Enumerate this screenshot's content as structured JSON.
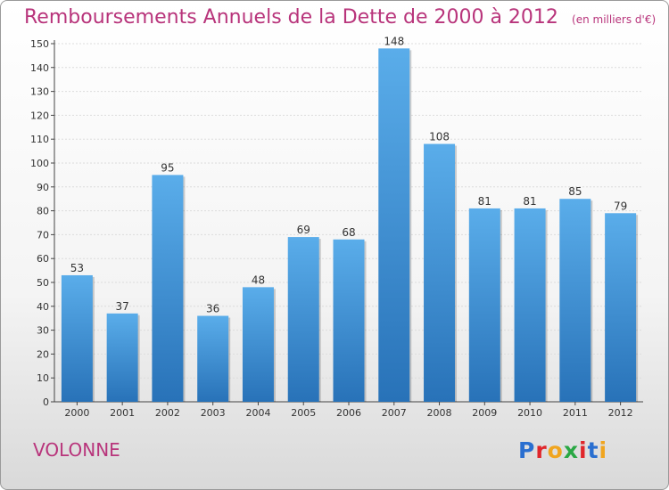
{
  "title": "Remboursements Annuels de la Dette de 2000 à 2012",
  "unit_note": "(en milliers d'€)",
  "commune": "VOLONNE",
  "logo": {
    "text": "Proxiti",
    "letter_colors": [
      "#2a6fd0",
      "#e0262b",
      "#f0a51f",
      "#2aa844",
      "#e0262b",
      "#2a6fd0",
      "#f0a51f"
    ]
  },
  "colors": {
    "bar": "#3f95dc",
    "bar_light": "#5aadea",
    "bar_dark": "#2872b8",
    "accent": "#b8347b",
    "axis": "#444444"
  },
  "chart_data": {
    "type": "bar",
    "categories": [
      "2000",
      "2001",
      "2002",
      "2003",
      "2004",
      "2005",
      "2006",
      "2007",
      "2008",
      "2009",
      "2010",
      "2011",
      "2012"
    ],
    "values": [
      53,
      37,
      95,
      36,
      48,
      69,
      68,
      148,
      108,
      81,
      81,
      85,
      79
    ],
    "ylim": [
      0,
      150
    ],
    "yticks": [
      0,
      10,
      20,
      30,
      40,
      50,
      60,
      70,
      80,
      90,
      100,
      110,
      120,
      130,
      140,
      150
    ],
    "grid": true,
    "data_labels": true
  }
}
